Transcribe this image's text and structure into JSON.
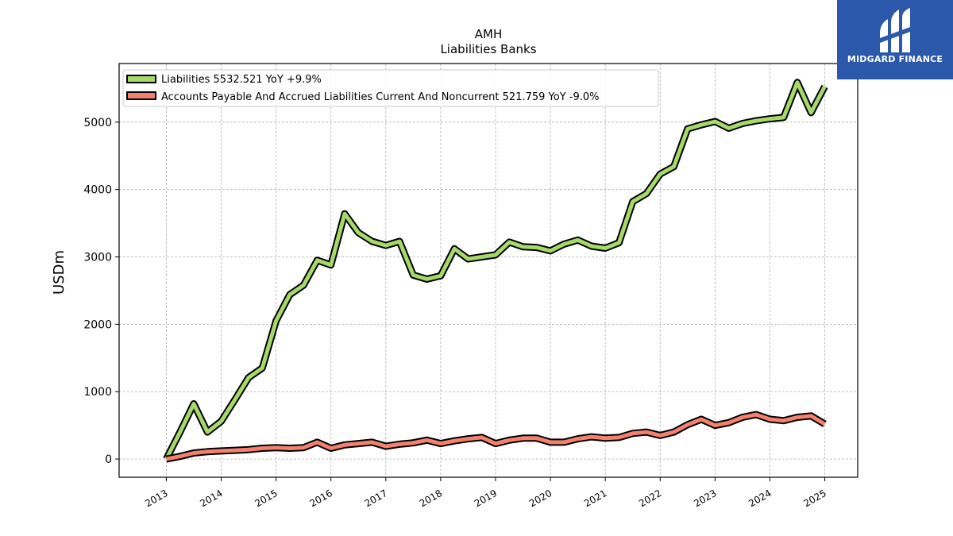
{
  "chart_data": {
    "type": "line",
    "title": "AMH",
    "subtitle": "Liabilities Banks",
    "ylabel": "USDm",
    "xlabel": "",
    "ylim": [
      -270,
      5870
    ],
    "xlim": [
      2012.14,
      2025.6
    ],
    "yticks": [
      0,
      1000,
      2000,
      3000,
      4000,
      5000
    ],
    "xticks": [
      "2013",
      "2014",
      "2015",
      "2016",
      "2017",
      "2018",
      "2019",
      "2020",
      "2021",
      "2022",
      "2023",
      "2024",
      "2025"
    ],
    "grid": true,
    "legend_position": "top-left",
    "x": [
      2013.0,
      2013.25,
      2013.5,
      2013.75,
      2014.0,
      2014.25,
      2014.5,
      2014.75,
      2015.0,
      2015.25,
      2015.5,
      2015.75,
      2016.0,
      2016.25,
      2016.5,
      2016.75,
      2017.0,
      2017.25,
      2017.5,
      2017.75,
      2018.0,
      2018.25,
      2018.5,
      2018.75,
      2019.0,
      2019.25,
      2019.5,
      2019.75,
      2020.0,
      2020.25,
      2020.5,
      2020.75,
      2021.0,
      2021.25,
      2021.5,
      2021.75,
      2022.0,
      2022.25,
      2022.5,
      2022.75,
      2023.0,
      2023.25,
      2023.5,
      2023.75,
      2024.0,
      2024.25,
      2024.5,
      2024.75,
      2025.0
    ],
    "series": [
      {
        "name": "Liabilities  5532.521 YoY +9.9%",
        "color": "#a6d96a",
        "values": [
          0,
          400,
          820,
          400,
          560,
          880,
          1210,
          1350,
          2050,
          2440,
          2580,
          2950,
          2880,
          3640,
          3360,
          3230,
          3170,
          3230,
          2730,
          2670,
          2720,
          3120,
          2970,
          3000,
          3030,
          3220,
          3150,
          3140,
          3090,
          3190,
          3250,
          3160,
          3130,
          3210,
          3820,
          3940,
          4230,
          4340,
          4900,
          4960,
          5010,
          4910,
          4980,
          5020,
          5050,
          5070,
          5590,
          5140,
          5530
        ]
      },
      {
        "name": "Accounts Payable And Accrued Liabilities Current And Noncurrent  521.759 YoY -9.0%",
        "color": "#f4806e",
        "values": [
          0,
          40,
          90,
          110,
          120,
          130,
          140,
          160,
          170,
          160,
          170,
          250,
          160,
          210,
          230,
          250,
          190,
          220,
          240,
          280,
          230,
          270,
          300,
          320,
          230,
          280,
          310,
          310,
          250,
          250,
          300,
          330,
          310,
          320,
          380,
          400,
          350,
          400,
          510,
          590,
          500,
          540,
          620,
          660,
          590,
          570,
          620,
          640,
          520
        ]
      }
    ]
  },
  "logo": {
    "text": "MIDGARD FINANCE",
    "background": "#2b58ab"
  }
}
